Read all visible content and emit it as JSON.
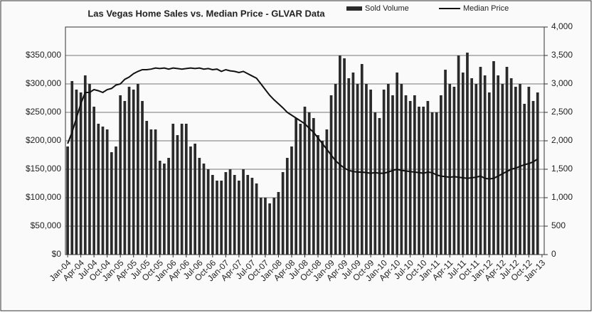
{
  "chart_data": {
    "type": "bar-line",
    "title": "Las Vegas Home Sales vs. Median Price - GLVAR Data",
    "categories": [
      "Jan-04",
      null,
      null,
      "Apr-04",
      null,
      null,
      "Jul-04",
      null,
      null,
      "Oct-04",
      null,
      null,
      "Jan-05",
      null,
      null,
      "Apr-05",
      null,
      null,
      "Jul-05",
      null,
      null,
      "Oct-05",
      null,
      null,
      "Jan-06",
      null,
      null,
      "Apr-06",
      null,
      null,
      "Jul-06",
      null,
      null,
      "Oct-06",
      null,
      null,
      "Jan-07",
      null,
      null,
      "Apr-07",
      null,
      null,
      "Jul-07",
      null,
      null,
      "Oct-07",
      null,
      null,
      "Jan-08",
      null,
      null,
      "Apr-08",
      null,
      null,
      "Jul-08",
      null,
      null,
      "Oct-08",
      null,
      null,
      "Jan-09",
      null,
      null,
      "Apr-09",
      null,
      null,
      "Jul-09",
      null,
      null,
      "Oct-09",
      null,
      null,
      "Jan-10",
      null,
      null,
      "Apr-10",
      null,
      null,
      "Jul-10",
      null,
      null,
      "Oct-10",
      null,
      null,
      "Jan-11",
      null,
      null,
      "Apr-11",
      null,
      null,
      "Jul-11",
      null,
      null,
      "Oct-11",
      null,
      null,
      "Jan-12",
      null,
      null,
      "Apr-12",
      null,
      null,
      "Jul-12",
      null,
      null,
      "Oct-12",
      null,
      null,
      "Jan-13"
    ],
    "series": [
      {
        "name": "Sold Volume",
        "kind": "bar",
        "axis": "y2",
        "color": "#2a2a2a",
        "values": [
          1900,
          3050,
          2900,
          2850,
          3150,
          3000,
          2600,
          2300,
          2250,
          2200,
          1800,
          1900,
          2800,
          2700,
          2950,
          2900,
          3000,
          2700,
          2350,
          2200,
          2200,
          1650,
          1600,
          1700,
          2300,
          2100,
          2300,
          2300,
          1900,
          1950,
          1700,
          1600,
          1500,
          1400,
          1300,
          1300,
          1450,
          1500,
          1400,
          1300,
          1500,
          1400,
          1350,
          1250,
          1000,
          1000,
          900,
          1000,
          1100,
          1450,
          1700,
          1900,
          2400,
          2300,
          2600,
          2500,
          2400,
          2100,
          2000,
          2200,
          2800,
          3000,
          3500,
          3450,
          3100,
          3200,
          3000,
          3350,
          3000,
          2900,
          2500,
          2400,
          2900,
          3000,
          2800,
          3200,
          3000,
          2800,
          2700,
          2800,
          2600,
          2600,
          2700,
          2500,
          2500,
          2800,
          3250,
          3000,
          2950,
          3500,
          3200,
          3550,
          3100,
          3000,
          3300,
          3150,
          2850,
          3400,
          3150,
          3000,
          3300,
          3100,
          2950,
          3000,
          2650,
          2950,
          2700,
          2850,
          null
        ]
      },
      {
        "name": "Median Price",
        "kind": "line",
        "color": "#111111",
        "values": [
          195000,
          215000,
          240000,
          265000,
          285000,
          285000,
          290000,
          288000,
          285000,
          290000,
          292000,
          298000,
          300000,
          308000,
          312000,
          318000,
          322000,
          325000,
          325000,
          326000,
          328000,
          327000,
          328000,
          326000,
          328000,
          327000,
          326000,
          327000,
          328000,
          327000,
          328000,
          326000,
          327000,
          325000,
          326000,
          322000,
          325000,
          323000,
          322000,
          320000,
          322000,
          318000,
          314000,
          310000,
          300000,
          290000,
          280000,
          272000,
          265000,
          258000,
          250000,
          245000,
          240000,
          235000,
          230000,
          222000,
          215000,
          205000,
          195000,
          185000,
          175000,
          165000,
          158000,
          152000,
          148000,
          146000,
          145000,
          145000,
          144000,
          143000,
          144000,
          143000,
          143000,
          145000,
          148000,
          150000,
          148000,
          147000,
          146000,
          145000,
          144000,
          143000,
          145000,
          144000,
          140000,
          138000,
          137000,
          136000,
          137000,
          136000,
          135000,
          134000,
          135000,
          136000,
          138000,
          134000,
          133000,
          134000,
          138000,
          142000,
          146000,
          150000,
          152000,
          155000,
          158000,
          160000,
          163000,
          168000,
          null
        ]
      }
    ],
    "ylim": [
      0,
      400000
    ],
    "yticks": [
      {
        "value": 0,
        "label": "$0"
      },
      {
        "value": 50000,
        "label": "$50,000"
      },
      {
        "value": 100000,
        "label": "$100,000"
      },
      {
        "value": 150000,
        "label": "$150,000"
      },
      {
        "value": 200000,
        "label": "$200,000"
      },
      {
        "value": 250000,
        "label": "$250,000"
      },
      {
        "value": 300000,
        "label": "$300,000"
      },
      {
        "value": 350000,
        "label": "$350,000"
      }
    ],
    "y2lim": [
      0,
      4000
    ],
    "y2ticks": [
      0,
      500,
      {
        "value": 1000,
        "label": "1,000"
      },
      {
        "value": 1500,
        "label": "1,500"
      },
      {
        "value": 2000,
        "label": "2,000"
      },
      {
        "value": 2500,
        "label": "2,500"
      },
      {
        "value": 3000,
        "label": "3,000"
      },
      {
        "value": 3500,
        "label": "3,500"
      },
      {
        "value": 4000,
        "label": "4,000"
      }
    ],
    "grid": true
  }
}
